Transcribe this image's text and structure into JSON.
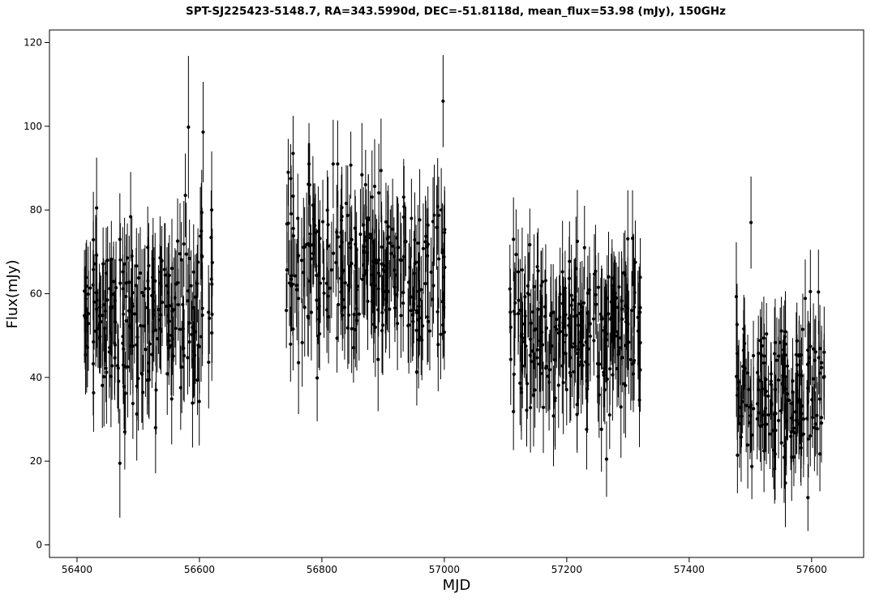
{
  "chart_data": {
    "type": "scatter",
    "title": "SPT-SJ225423-5148.7, RA=343.5990d, DEC=-51.8118d, mean_flux=53.98 (mJy), 150GHz",
    "xlabel": "MJD",
    "ylabel": "Flux(mJy)",
    "xlim": [
      56355,
      57685
    ],
    "ylim": [
      -3,
      123
    ],
    "xticks": [
      56400,
      56600,
      56800,
      57000,
      57200,
      57400,
      57600
    ],
    "yticks": [
      0,
      20,
      40,
      60,
      80,
      100,
      120
    ],
    "grid": false,
    "marker_color": "#000000",
    "errorbar_color": "#000000",
    "seasons": [
      {
        "x_range": [
          56412,
          56622
        ],
        "n_points": 230,
        "mean_flux": 54,
        "flux_sd": 10,
        "mean_error": 10,
        "notable_points": [
          {
            "x": 56470,
            "y": 19.5,
            "err": 13
          },
          {
            "x": 56478,
            "y": 27,
            "err": 9
          },
          {
            "x": 56432,
            "y": 80.5,
            "err": 12
          },
          {
            "x": 56582,
            "y": 99.8,
            "err": 17
          },
          {
            "x": 56606,
            "y": 98.6,
            "err": 12
          },
          {
            "x": 56577,
            "y": 83.5,
            "err": 10
          },
          {
            "x": 56620,
            "y": 80,
            "err": 14
          },
          {
            "x": 56470,
            "y": 73,
            "err": 11
          }
        ]
      },
      {
        "x_range": [
          56742,
          57002
        ],
        "n_points": 270,
        "mean_flux": 65,
        "flux_sd": 10,
        "mean_error": 10,
        "notable_points": [
          {
            "x": 56742,
            "y": 56,
            "err": 9
          },
          {
            "x": 56753,
            "y": 93.5,
            "err": 9
          },
          {
            "x": 56745,
            "y": 89,
            "err": 8
          },
          {
            "x": 56780,
            "y": 86,
            "err": 10
          },
          {
            "x": 56998,
            "y": 106,
            "err": 11
          },
          {
            "x": 57000,
            "y": 50.8,
            "err": 9
          },
          {
            "x": 56995,
            "y": 80,
            "err": 10
          },
          {
            "x": 56955,
            "y": 41.3,
            "err": 8
          }
        ]
      },
      {
        "x_range": [
          57107,
          57322
        ],
        "n_points": 250,
        "mean_flux": 51,
        "flux_sd": 9,
        "mean_error": 10,
        "notable_points": [
          {
            "x": 57265,
            "y": 20.5,
            "err": 9
          },
          {
            "x": 57148,
            "y": 37,
            "err": 9
          },
          {
            "x": 57113,
            "y": 73,
            "err": 10
          },
          {
            "x": 57229,
            "y": 71,
            "err": 10
          },
          {
            "x": 57312,
            "y": 67.5,
            "err": 10
          },
          {
            "x": 57320,
            "y": 41.8,
            "err": 10
          }
        ]
      },
      {
        "x_range": [
          57477,
          57622
        ],
        "n_points": 170,
        "mean_flux": 37,
        "flux_sd": 9,
        "mean_error": 9,
        "notable_points": [
          {
            "x": 57477,
            "y": 59.3,
            "err": 13
          },
          {
            "x": 57501,
            "y": 77,
            "err": 11
          },
          {
            "x": 57598,
            "y": 60.5,
            "err": 10
          },
          {
            "x": 57594,
            "y": 11.3,
            "err": 8
          },
          {
            "x": 57571,
            "y": 21,
            "err": 7
          },
          {
            "x": 57620,
            "y": 40,
            "err": 9
          }
        ]
      }
    ]
  }
}
